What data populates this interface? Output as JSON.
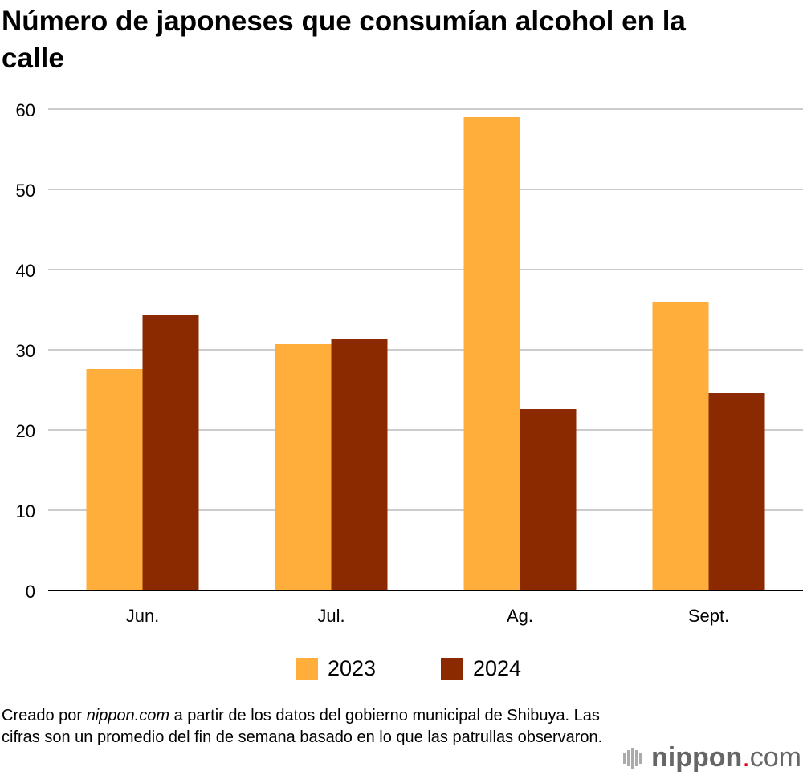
{
  "title": "Número de japoneses que consumían alcohol en la calle",
  "chart_data": {
    "type": "bar",
    "title": "Número de japoneses que consumían alcohol en la calle",
    "categories": [
      "Jun.",
      "Jul.",
      "Ag.",
      "Sept."
    ],
    "series": [
      {
        "name": "2023",
        "values": [
          27.6,
          30.7,
          59,
          35.9
        ],
        "color": "#FFAE3B"
      },
      {
        "name": "2024",
        "values": [
          34.3,
          31.3,
          22.6,
          24.6
        ],
        "color": "#8B2A00"
      }
    ],
    "ylim": [
      0,
      60
    ],
    "yticks": [
      0,
      10,
      20,
      30,
      40,
      50,
      60
    ],
    "grid": true,
    "legend": "bottom"
  },
  "note": {
    "prefix": "Creado por ",
    "source": "nippon.com",
    "suffix": " a partir de los datos del gobierno municipal de Shibuya. Las cifras son un promedio del fin de semana basado en lo que las patrullas observaron."
  },
  "logo": {
    "name": "nippon",
    "dot": ".",
    "tld": "com",
    "dot_color": "#E60012"
  }
}
